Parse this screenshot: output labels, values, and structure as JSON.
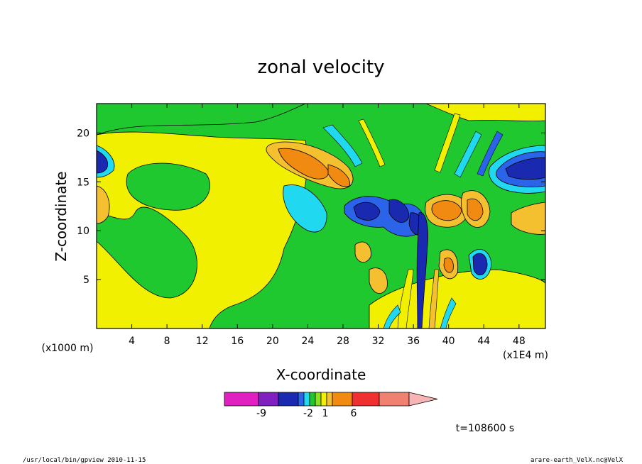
{
  "chart_data": {
    "type": "heatmap",
    "title": "zonal velocity",
    "xlabel": "X-coordinate",
    "ylabel": "Z-coordinate",
    "x_unit_label": "(x1000 m)",
    "x_scale_label": "(x1E4 m)",
    "xlim": [
      0,
      51
    ],
    "ylim": [
      0,
      23
    ],
    "x_ticks": [
      "4",
      "8",
      "12",
      "16",
      "20",
      "24",
      "28",
      "32",
      "36",
      "40",
      "44",
      "48"
    ],
    "y_ticks": [
      "5",
      "10",
      "15",
      "20"
    ],
    "colorbar": {
      "tick_labels": [
        "-9",
        "-2",
        "1",
        "6"
      ],
      "colors": [
        "#e020c0",
        "#8020c0",
        "#1a2ab0",
        "#2b64e8",
        "#20d8f0",
        "#20c830",
        "#8ce020",
        "#f0f000",
        "#f4c030",
        "#f08a10",
        "#f03030",
        "#f08070",
        "#f8b4b4"
      ]
    },
    "time_label": "t=108600 s"
  },
  "footer": {
    "left": "/usr/local/bin/gpview  2010-11-15",
    "right": "arare-earth_VelX.nc@VelX"
  }
}
